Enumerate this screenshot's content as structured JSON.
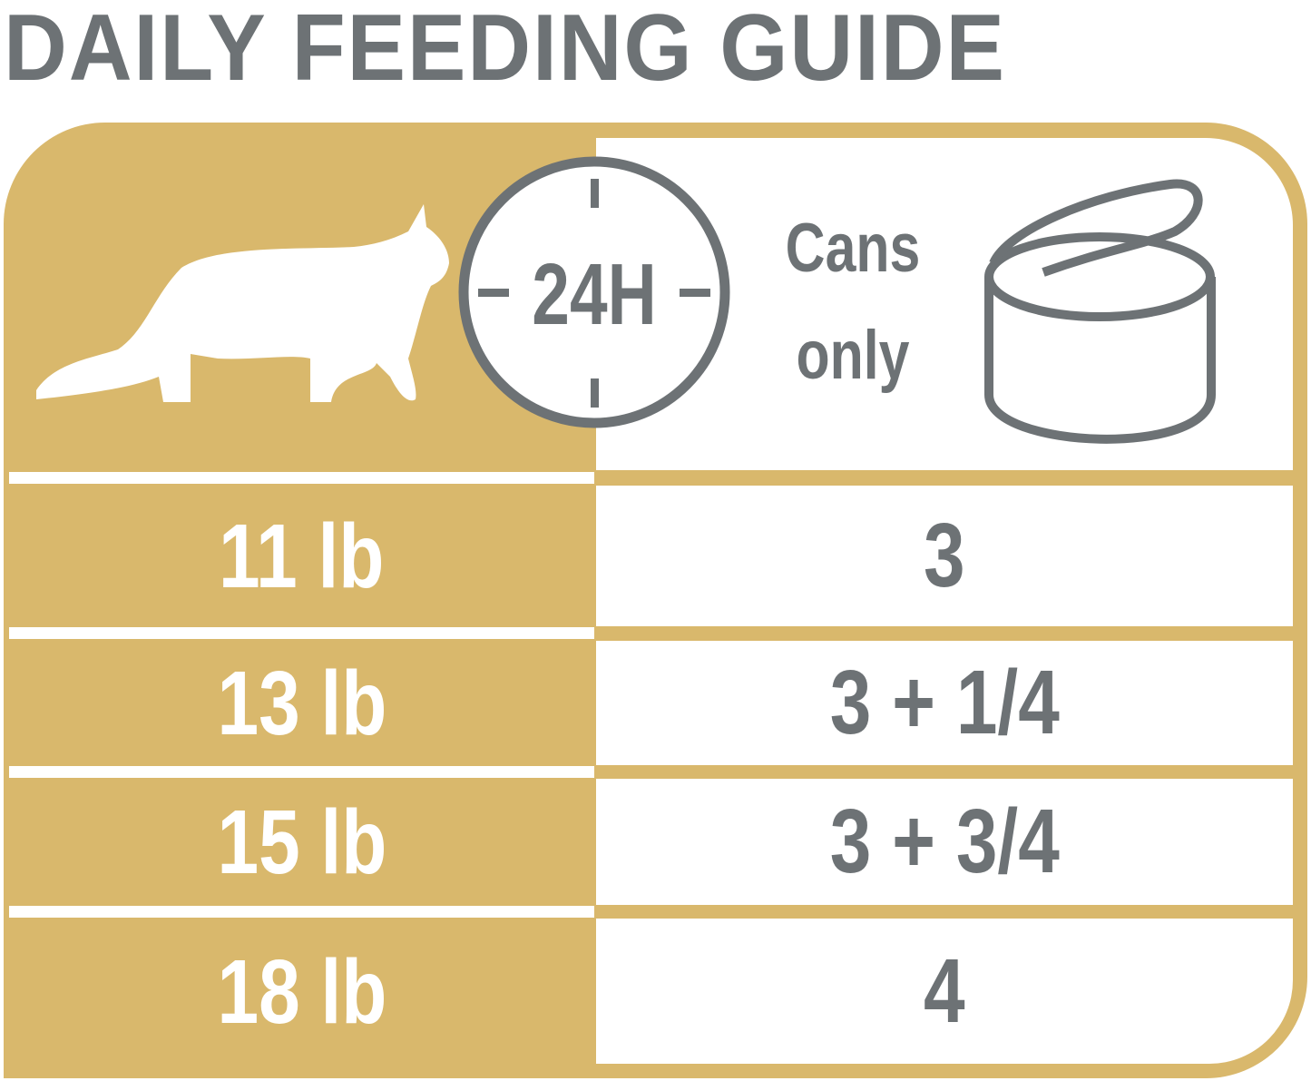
{
  "title": "DAILY FEEDING GUIDE",
  "header": {
    "clock_label": "24H",
    "food_type_line1": "Cans",
    "food_type_line2": "only",
    "icons": [
      "cat-silhouette-icon",
      "clock-icon",
      "can-icon"
    ]
  },
  "rows": [
    {
      "weight": "11 lb",
      "cans": "3"
    },
    {
      "weight": "13 lb",
      "cans": "3 + 1/4"
    },
    {
      "weight": "15 lb",
      "cans": "3 + 3/4"
    },
    {
      "weight": "18 lb",
      "cans": "4"
    }
  ],
  "colors": {
    "gold": "#d9b86c",
    "gray": "#6d7275",
    "white": "#ffffff"
  }
}
